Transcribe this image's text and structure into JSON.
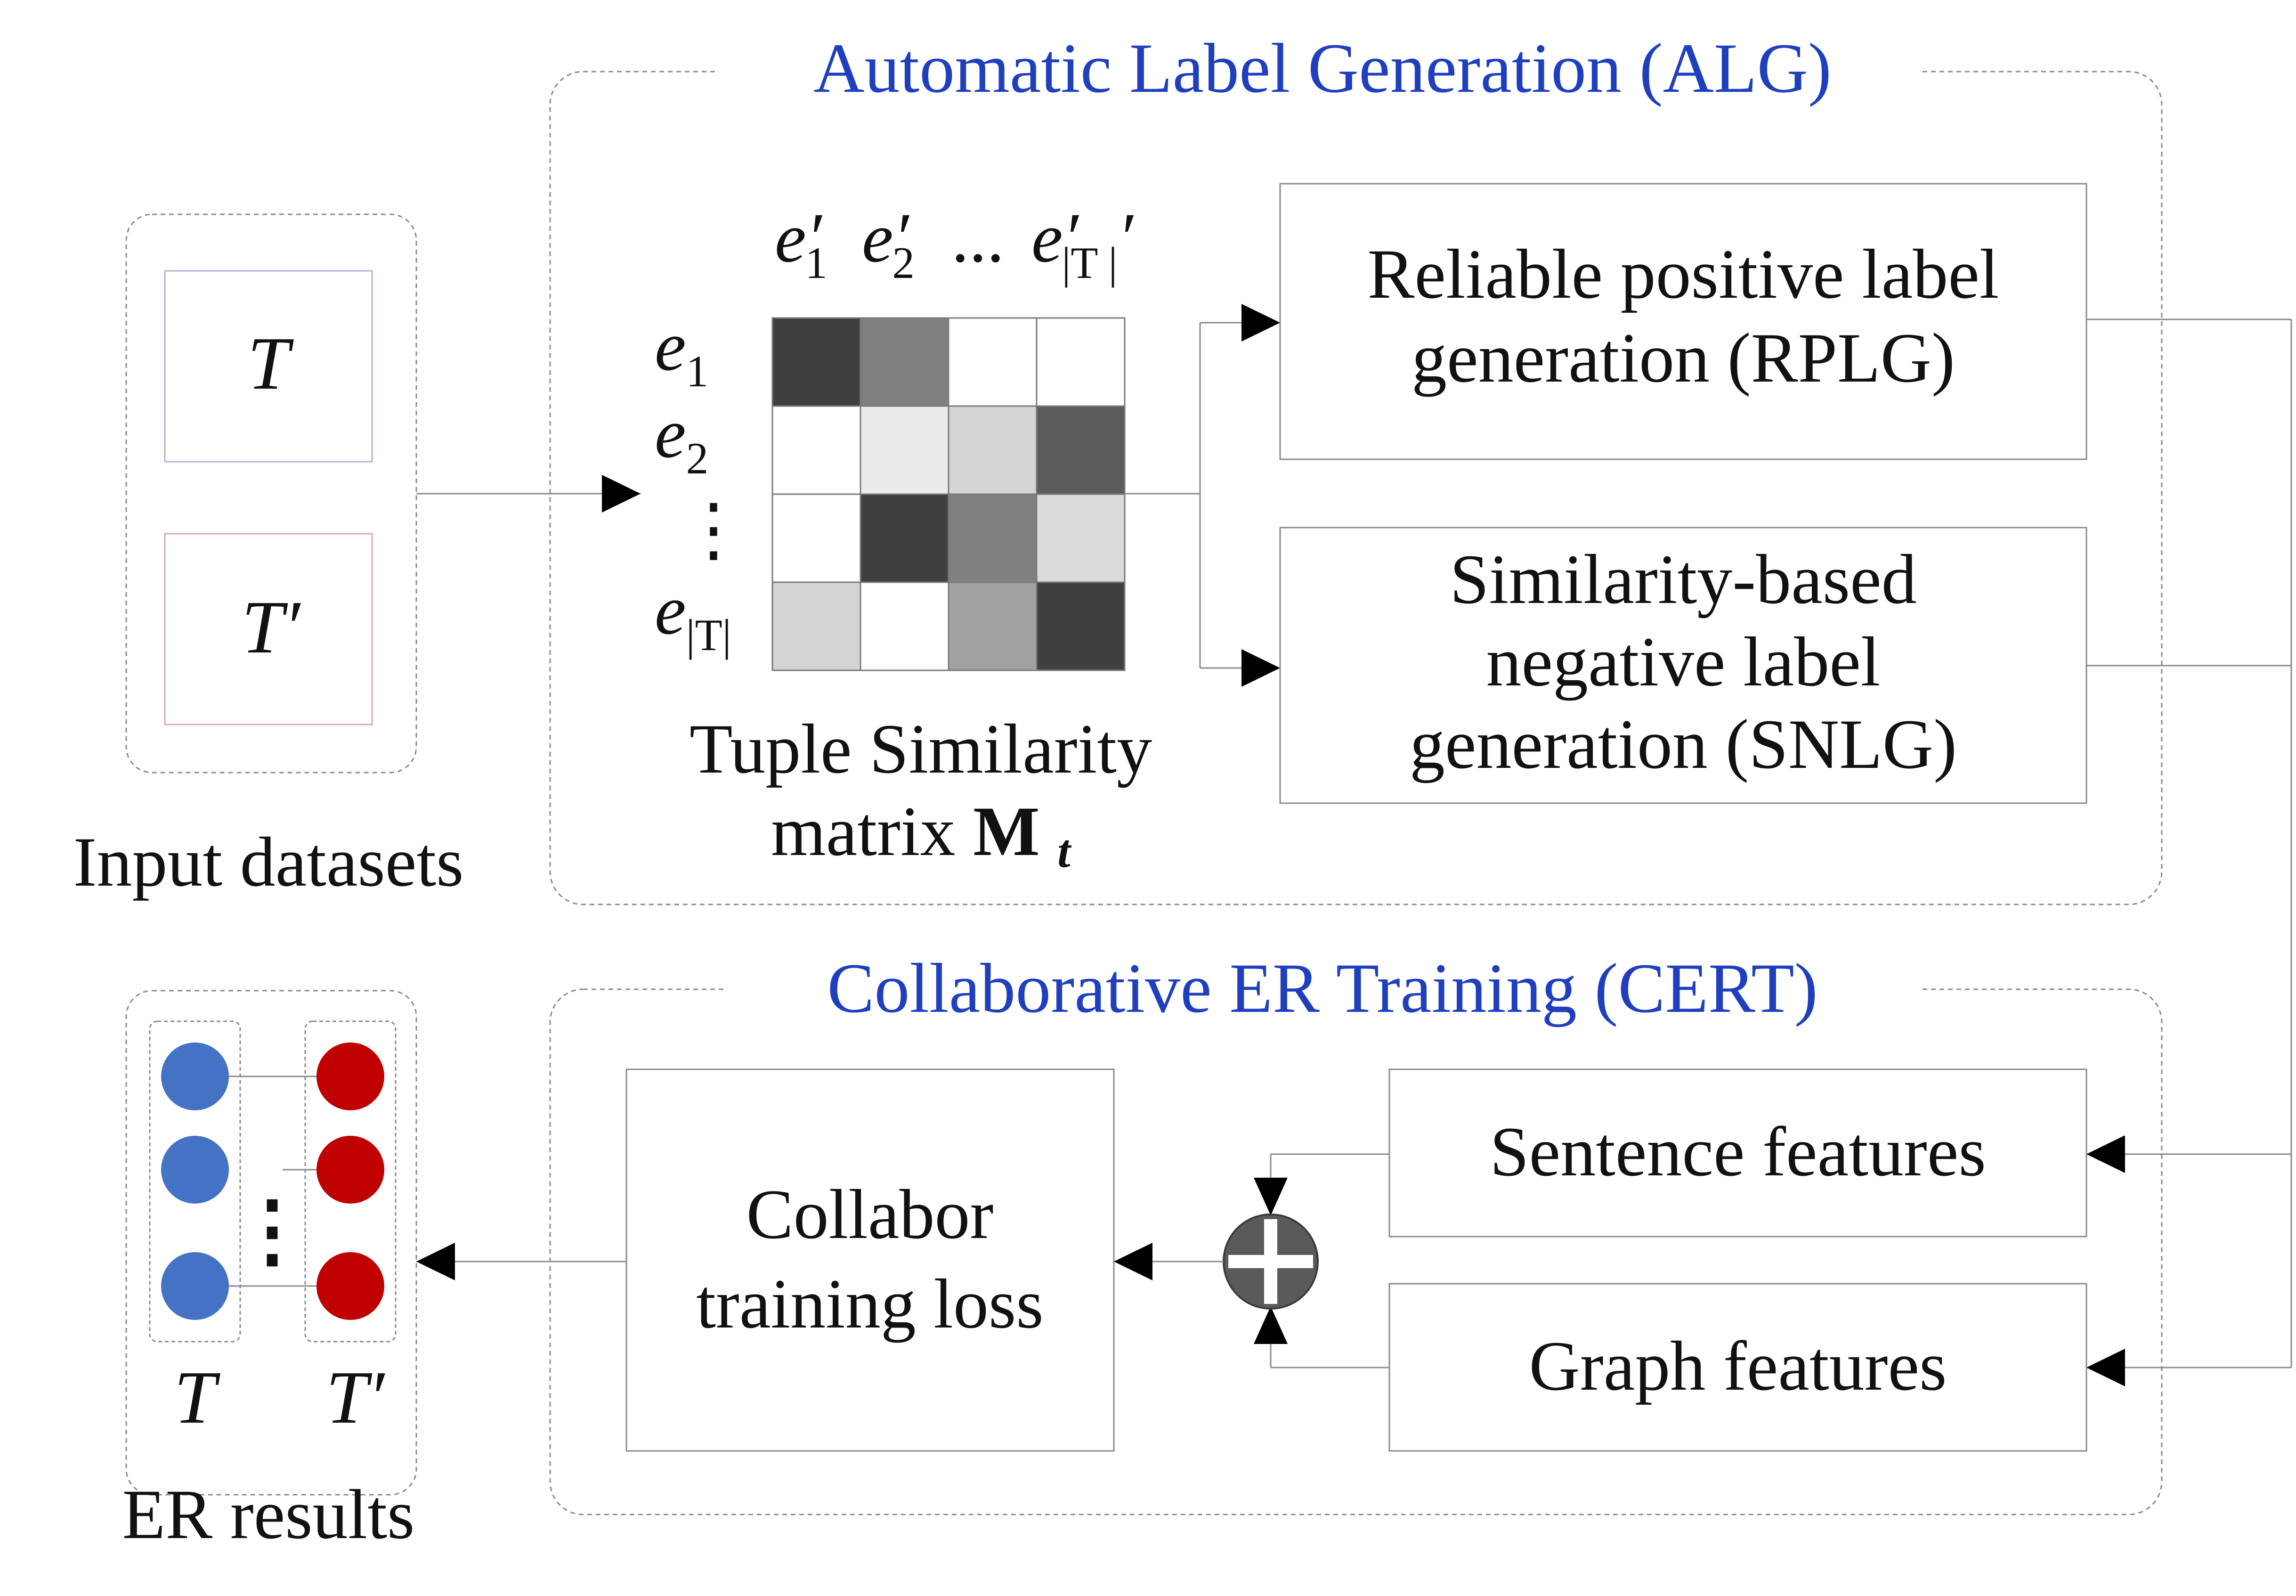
{
  "alg": {
    "title": "Automatic Label Generation (ALG)",
    "rplg_line1": "Reliable positive label",
    "rplg_line2": "generation (RPLG)",
    "snlg_line1": "Similarity-based",
    "snlg_line2": "negative label",
    "snlg_line3": "generation (SNLG)"
  },
  "matrix": {
    "caption_line1": "Tuple Similarity",
    "caption_line2": "matrix",
    "symbol": "M",
    "symbol_sub": "t",
    "col_labels": [
      {
        "base": "e",
        "sub": "1",
        "prime": true
      },
      {
        "base": "e",
        "sub": "2",
        "prime": true
      },
      {
        "base": "...",
        "sub": "",
        "prime": false
      },
      {
        "base": "e",
        "sub": "|T |",
        "prime": true
      }
    ],
    "row_labels": [
      {
        "base": "e",
        "sub": "1"
      },
      {
        "base": "e",
        "sub": "2"
      },
      {
        "base": "⋮",
        "sub": ""
      },
      {
        "base": "e",
        "sub": "|T|"
      }
    ],
    "cell_gray": [
      [
        0.25,
        0.5,
        1.0,
        1.0
      ],
      [
        1.0,
        0.92,
        0.83,
        0.36
      ],
      [
        1.0,
        0.25,
        0.5,
        0.86
      ],
      [
        0.83,
        1.0,
        0.63,
        0.25
      ]
    ]
  },
  "inputs": {
    "caption": "Input datasets",
    "t": "T",
    "t_prime": "T′",
    "t_border": "#aeb7d4",
    "t_prime_border": "#d9a9a9"
  },
  "cert": {
    "title": "Collaborative ER Training (CERT)",
    "sentence": "Sentence features",
    "graph": "Graph features",
    "loss_line1": "Collabor",
    "loss_line2": "training loss"
  },
  "results": {
    "caption": "ER results",
    "t": "T",
    "t_prime": "T′",
    "dots": "⋮",
    "left_color": "#4472c4",
    "right_color": "#c00000"
  },
  "icons": {
    "combine": "plus-circle-icon"
  }
}
